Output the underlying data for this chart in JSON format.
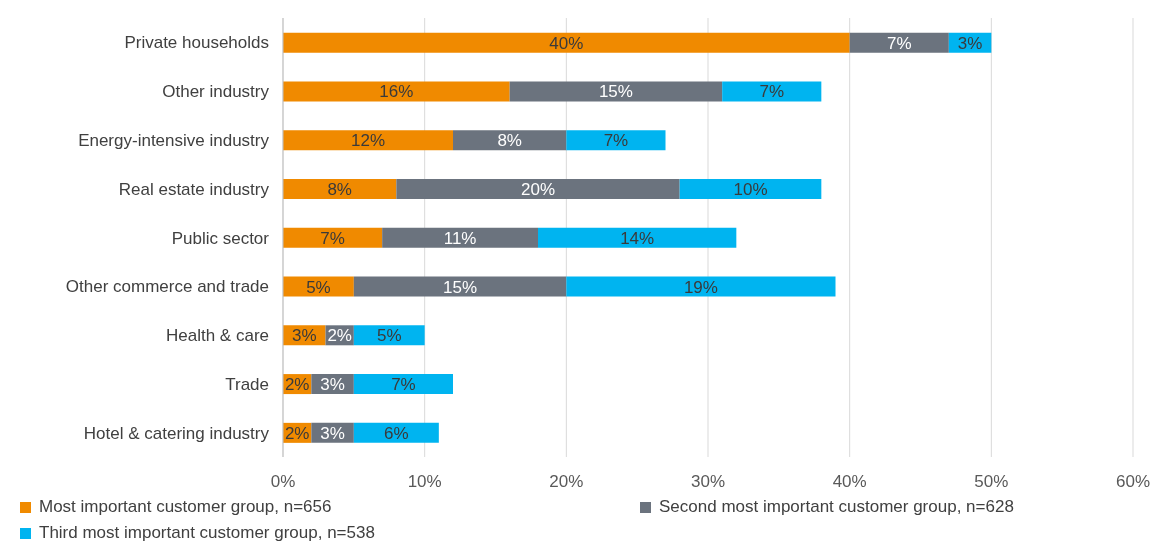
{
  "chart_data": {
    "type": "bar",
    "orientation": "horizontal",
    "stacked": true,
    "categories": [
      "Private households",
      "Other industry",
      "Energy-intensive industry",
      "Real estate industry",
      "Public sector",
      "Other commerce and trade",
      "Health & care",
      "Trade",
      "Hotel & catering industry"
    ],
    "series": [
      {
        "name": "Most important customer group, n=656",
        "color": "#f08a00",
        "values": [
          40,
          16,
          12,
          8,
          7,
          5,
          3,
          2,
          2
        ],
        "value_labels": [
          "40%",
          "16%",
          "12%",
          "8%",
          "7%",
          "5%",
          "3%",
          "2%",
          "2%"
        ]
      },
      {
        "name": "Second most important customer group, n=628",
        "color": "#6b737e",
        "values": [
          7,
          15,
          8,
          20,
          11,
          15,
          2,
          3,
          3
        ],
        "value_labels": [
          "7%",
          "15%",
          "8%",
          "20%",
          "11%",
          "15%",
          "2%",
          "3%",
          "3%"
        ]
      },
      {
        "name": "Third most important customer group, n=538",
        "color": "#00b4f0",
        "values": [
          3,
          7,
          7,
          10,
          14,
          19,
          5,
          7,
          6
        ],
        "value_labels": [
          "3%",
          "7%",
          "7%",
          "10%",
          "14%",
          "19%",
          "5%",
          "7%",
          "6%"
        ]
      }
    ],
    "xlim": [
      0,
      60
    ],
    "xticks": [
      {
        "value": 0,
        "label": "0%"
      },
      {
        "value": 10,
        "label": "10%"
      },
      {
        "value": 20,
        "label": "20%"
      },
      {
        "value": 30,
        "label": "30%"
      },
      {
        "value": 40,
        "label": "40%"
      },
      {
        "value": 50,
        "label": "50%"
      },
      {
        "value": 60,
        "label": "60%"
      }
    ],
    "grid": "x",
    "legend": "bottom"
  }
}
